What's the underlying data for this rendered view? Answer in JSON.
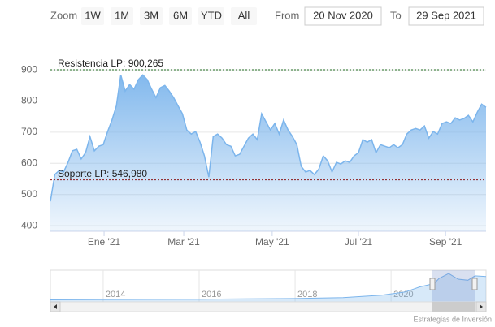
{
  "range_selector": {
    "zoom_label": "Zoom",
    "buttons": [
      "1W",
      "1M",
      "3M",
      "6M",
      "YTD",
      "All"
    ],
    "from_label": "From",
    "from": "20 Nov 2020",
    "to_label": "To",
    "to": "29 Sep 2021"
  },
  "chart_data": {
    "type": "area",
    "color": "#7cb5ec",
    "values": [
      478,
      564,
      577,
      572,
      603,
      640,
      645,
      614,
      634,
      686,
      640,
      655,
      660,
      702,
      739,
      785,
      884,
      832,
      853,
      838,
      869,
      884,
      869,
      838,
      811,
      843,
      850,
      832,
      811,
      785,
      759,
      707,
      694,
      702,
      668,
      624,
      556,
      686,
      694,
      681,
      660,
      655,
      624,
      629,
      655,
      681,
      694,
      676,
      759,
      733,
      707,
      728,
      694,
      739,
      707,
      686,
      660,
      590,
      572,
      577,
      564,
      582,
      624,
      608,
      572,
      603,
      598,
      608,
      603,
      624,
      634,
      676,
      668,
      676,
      634,
      660,
      655,
      650,
      660,
      650,
      660,
      694,
      707,
      712,
      707,
      720,
      681,
      702,
      694,
      728,
      733,
      728,
      746,
      739,
      744,
      754,
      733,
      764,
      790,
      780
    ],
    "xlim": [
      0,
      99
    ],
    "xticks": [
      {
        "value": 12.2,
        "label": "Ene '21"
      },
      {
        "value": 30.3,
        "label": "Mar '21"
      },
      {
        "value": 50.4,
        "label": "May '21"
      },
      {
        "value": 70,
        "label": "Jul '21"
      },
      {
        "value": 89.8,
        "label": "Sep '21"
      }
    ],
    "ylim": [
      382,
      968
    ],
    "yticks": [
      400,
      500,
      600,
      700,
      800,
      900
    ],
    "grid": true,
    "plot_lines": [
      {
        "value": 900.265,
        "label": "Resistencia LP: 900,265",
        "color": "#1f6b1f"
      },
      {
        "value": 546.98,
        "label": "Soporte LP: 546,980",
        "color": "#8b1a1a"
      }
    ],
    "navigator": {
      "x": [
        2012.9,
        2014,
        2015,
        2016,
        2017,
        2018,
        2019,
        2019.8,
        2020.3,
        2020.6,
        2020.9,
        2021.0,
        2021.2,
        2021.4,
        2021.6,
        2021.75,
        2021.98
      ],
      "values": [
        60,
        70,
        75,
        80,
        90,
        100,
        130,
        200,
        300,
        450,
        550,
        700,
        850,
        680,
        650,
        780,
        760
      ],
      "xlim": [
        2012.9,
        2021.98
      ],
      "ylim": [
        0,
        900
      ],
      "xticks": [
        2014,
        2016,
        2018,
        2020
      ]
    },
    "credits": "Estrategias de Inversión"
  }
}
